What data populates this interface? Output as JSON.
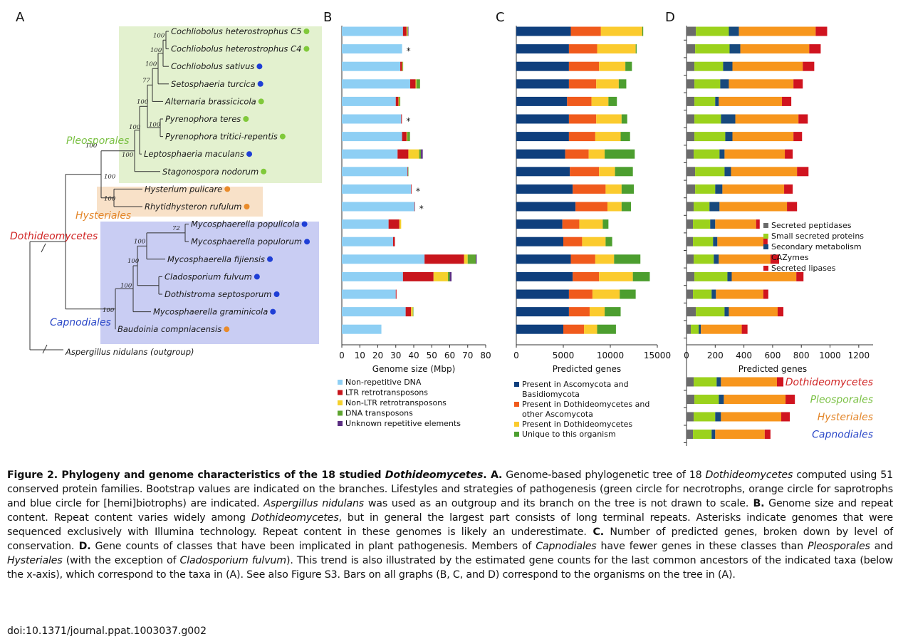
{
  "panel_labels": [
    "A",
    "B",
    "C",
    "D"
  ],
  "tree": {
    "species": [
      {
        "name": "Cochliobolus heterostrophus C5",
        "lifestyle": "green"
      },
      {
        "name": "Cochliobolus heterostrophus C4",
        "lifestyle": "green"
      },
      {
        "name": "Cochliobolus sativus",
        "lifestyle": "blue"
      },
      {
        "name": "Setosphaeria turcica",
        "lifestyle": "blue"
      },
      {
        "name": "Alternaria brassicicola",
        "lifestyle": "green"
      },
      {
        "name": "Pyrenophora teres",
        "lifestyle": "green"
      },
      {
        "name": "Pyrenophora tritici-repentis",
        "lifestyle": "green"
      },
      {
        "name": "Leptosphaeria maculans",
        "lifestyle": "blue"
      },
      {
        "name": "Stagonospora nodorum",
        "lifestyle": "green"
      },
      {
        "name": "Hysterium pulicare",
        "lifestyle": "orange"
      },
      {
        "name": "Rhytidhysteron rufulum",
        "lifestyle": "orange"
      },
      {
        "name": "Mycosphaerella populicola",
        "lifestyle": "blue"
      },
      {
        "name": "Mycosphaerella populorum",
        "lifestyle": "blue"
      },
      {
        "name": "Mycosphaerella fijiensis",
        "lifestyle": "blue"
      },
      {
        "name": "Cladosporium fulvum",
        "lifestyle": "blue"
      },
      {
        "name": "Dothistroma septosporum",
        "lifestyle": "blue"
      },
      {
        "name": "Mycosphaerella graminicola",
        "lifestyle": "blue"
      },
      {
        "name": "Baudoinia compniacensis",
        "lifestyle": "orange"
      }
    ],
    "outgroup": "Aspergillus nidulans (outgroup)",
    "bootstrap": [
      "100",
      "100",
      "100",
      "77",
      "100",
      "100",
      "100",
      "100",
      "100",
      "100",
      "100",
      "72",
      "100",
      "100",
      "100",
      "100"
    ],
    "clades": {
      "pleosporales": "Pleosporales",
      "hysteriales": "Hysteriales",
      "capnodiales": "Capnodiales",
      "dothideomycetes": "Dothideomycetes"
    }
  },
  "colors": {
    "pleosporales_box": "#e3f1cf",
    "hysteriales_box": "#f8e1c8",
    "capnodiales_box": "#c9cdf3",
    "lifestyle_green": "#80c93a",
    "lifestyle_orange": "#e98b2b",
    "lifestyle_blue": "#1f3fd6",
    "pleosporales_text": "#7ac043",
    "hysteriales_text": "#e3862a",
    "capnodiales_text": "#2b48c8",
    "dothideomycetes_text": "#d02424"
  },
  "chart_data": [
    {
      "panel": "B",
      "type": "bar",
      "orientation": "horizontal",
      "stacked": true,
      "xlabel": "Genome size (Mbp)",
      "xlim": [
        0,
        80
      ],
      "xticks": [
        "0",
        "10",
        "20",
        "30",
        "40",
        "50",
        "60",
        "70",
        "80"
      ],
      "asterisk_label": "*",
      "asterisk_rows": [
        1,
        5,
        9,
        10
      ],
      "series": [
        {
          "name": "Non-repetitive DNA",
          "color": "#8ecff4",
          "values": [
            34,
            33.5,
            32.5,
            38,
            30,
            33,
            33.5,
            31,
            36.5,
            38.5,
            40.5,
            26,
            28.5,
            46,
            34,
            30,
            35.5,
            22
          ]
        },
        {
          "name": "LTR retrotransposons",
          "color": "#c8151c",
          "values": [
            2,
            0,
            1,
            3,
            1.5,
            0.4,
            2.5,
            6,
            0.3,
            0.3,
            0.2,
            6,
            1,
            22,
            17,
            0.4,
            3,
            0
          ]
        },
        {
          "name": "Non-LTR retrotransposons",
          "color": "#f5d12d",
          "values": [
            0.5,
            0,
            0.3,
            0.5,
            0.4,
            0,
            0.4,
            6,
            0,
            0,
            0,
            1,
            0,
            2,
            8,
            0,
            1,
            0
          ]
        },
        {
          "name": "DNA transposons",
          "color": "#5ea530",
          "values": [
            0.3,
            0,
            0.3,
            2,
            0.6,
            0,
            1.5,
            1,
            0.2,
            0,
            0,
            0,
            0,
            4.5,
            1,
            0,
            0.3,
            0
          ]
        },
        {
          "name": "Unknown repetitive elements",
          "color": "#5b2d82",
          "values": [
            0.2,
            0,
            0,
            0,
            0,
            0,
            0,
            1,
            0,
            0,
            0,
            0,
            0,
            0.5,
            1,
            0,
            0,
            0
          ]
        }
      ]
    },
    {
      "panel": "C",
      "type": "bar",
      "orientation": "horizontal",
      "stacked": true,
      "xlabel": "Predicted genes",
      "xlim": [
        0,
        15000
      ],
      "xticks": [
        "0",
        "5000",
        "10000",
        "15000"
      ],
      "series": [
        {
          "name": "Present in Ascomycota and Basidiomycota",
          "color": "#0f3f7d",
          "values": [
            5800,
            5600,
            5600,
            5600,
            5400,
            5600,
            5600,
            5200,
            5700,
            6000,
            6300,
            4900,
            5000,
            5800,
            6000,
            5600,
            5600,
            5000
          ]
        },
        {
          "name": "Present in Dothideomycetes and other Ascomycota",
          "color": "#f05a1c",
          "values": [
            3200,
            3000,
            3200,
            2900,
            2600,
            2900,
            2800,
            2500,
            3100,
            3500,
            3400,
            1800,
            2000,
            2600,
            2800,
            2500,
            2200,
            2200
          ]
        },
        {
          "name": "Present in Dothideomycetes",
          "color": "#fbcb2e",
          "values": [
            4400,
            4100,
            2800,
            2400,
            1800,
            2700,
            2700,
            1700,
            1700,
            1700,
            1500,
            2500,
            2500,
            2000,
            3600,
            2900,
            1600,
            1400
          ]
        },
        {
          "name": "Unique to this organism",
          "color": "#4c9e2f",
          "values": [
            100,
            100,
            700,
            800,
            900,
            600,
            1000,
            3200,
            1900,
            1300,
            1000,
            600,
            700,
            2800,
            1800,
            1700,
            1700,
            2000
          ]
        }
      ],
      "legend": [
        "Present in Ascomycota and",
        "Basidiomycota",
        "Present in Dothideomycetes and",
        "other Ascomycota",
        "Present in Dothideomycetes",
        "Unique to this organism"
      ]
    },
    {
      "panel": "D",
      "type": "bar",
      "orientation": "horizontal",
      "stacked": true,
      "xlabel": "Predicted genes",
      "xlim": [
        0,
        1300
      ],
      "xticks": [
        "0",
        "200",
        "400",
        "600",
        "800",
        "1000",
        "1200"
      ],
      "series": [
        {
          "name": "Secreted peptidases",
          "color": "#6b6b6b",
          "values": [
            65,
            60,
            55,
            55,
            55,
            55,
            55,
            50,
            60,
            60,
            50,
            45,
            45,
            50,
            55,
            45,
            65,
            30
          ]
        },
        {
          "name": "Small secreted proteins",
          "color": "#9bd21c",
          "values": [
            230,
            240,
            200,
            180,
            145,
            185,
            215,
            180,
            205,
            140,
            110,
            120,
            140,
            140,
            230,
            130,
            200,
            55
          ]
        },
        {
          "name": "Secondary metabolism",
          "color": "#17497d",
          "values": [
            70,
            75,
            65,
            60,
            25,
            100,
            50,
            35,
            45,
            50,
            70,
            35,
            30,
            35,
            30,
            30,
            30,
            15
          ]
        },
        {
          "name": "CAZymes",
          "color": "#f7961d",
          "values": [
            535,
            480,
            490,
            450,
            440,
            440,
            425,
            420,
            460,
            430,
            470,
            285,
            320,
            360,
            450,
            330,
            340,
            285
          ]
        },
        {
          "name": "Secreted lipases",
          "color": "#d0141f",
          "values": [
            80,
            80,
            80,
            65,
            65,
            65,
            60,
            55,
            80,
            60,
            70,
            25,
            30,
            60,
            50,
            35,
            40,
            40
          ]
        }
      ],
      "ancestors": {
        "labels": [
          "Dothideomycetes",
          "Pleosporales",
          "Hysteriales",
          "Capnodiales"
        ],
        "label_colors": [
          "#d02424",
          "#7ac043",
          "#e3862a",
          "#2b48c8"
        ],
        "peptidases": [
          50,
          55,
          50,
          45
        ],
        "small_secreted": [
          160,
          170,
          150,
          130
        ],
        "secondary": [
          30,
          35,
          40,
          25
        ],
        "cazymes": [
          390,
          430,
          420,
          345
        ],
        "lipases": [
          45,
          65,
          60,
          40
        ]
      }
    }
  ],
  "caption": {
    "title": "Figure 2. Phylogeny and genome characteristics of the 18 studied ",
    "title_italic": "Dothideomycetes",
    "title_end": ".",
    "a_label": " A.",
    "a_text1": " Genome-based phylogenetic tree of 18 ",
    "a_italic1": "Dothideomycetes",
    "a_text2": " computed using 51 conserved protein families. Bootstrap values are indicated on the branches. Lifestyles and strategies of pathogenesis (green circle for necrotrophs, orange circle for saprotrophs and blue circle for [hemi]biotrophs) are indicated. ",
    "a_italic2": "Aspergillus nidulans",
    "a_text3": " was used as an outgroup and its branch on the tree is not drawn to scale.",
    "b_label": " B.",
    "b_text1": " Genome size and repeat content. Repeat content varies widely among ",
    "b_italic1": "Dothideomycetes",
    "b_text2": ", but in general the largest part consists of long terminal repeats. Asterisks indicate genomes that were sequenced exclusively with Illumina technology. Repeat content in these genomes is likely an underestimate.",
    "c_label": " C.",
    "c_text": " Number of predicted genes, broken down by level of conservation.",
    "d_label": " D.",
    "d_text1": " Gene counts of classes that have been implicated in plant pathogenesis. Members of ",
    "d_italic1": "Capnodiales",
    "d_text2": " have fewer genes in these classes than ",
    "d_italic2": "Pleosporales",
    "d_text3": " and ",
    "d_italic3": "Hysteriales",
    "d_text4": " (with the exception of ",
    "d_italic4": "Cladosporium fulvum",
    "d_text5": "). This trend is also illustrated by the estimated gene counts for the last common ancestors of the indicated taxa (below the x-axis), which correspond to the taxa in (A). See also Figure S3. Bars on all graphs (B, C, and D) correspond to the organisms on the tree in (A)."
  },
  "doi": "doi:10.1371/journal.ppat.1003037.g002"
}
